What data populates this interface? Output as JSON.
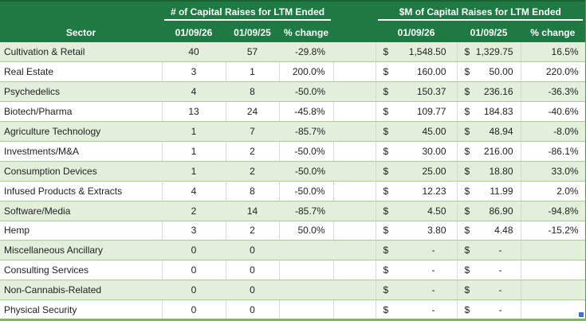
{
  "table": {
    "sector_header": "Sector",
    "left_section": {
      "title": "# of Capital Raises for LTM Ended",
      "col_headers": [
        "01/09/26",
        "01/09/25",
        "% change"
      ]
    },
    "right_section": {
      "title": "$M of Capital Raises for LTM Ended",
      "col_headers": [
        "01/09/26",
        "01/09/25",
        "% change"
      ]
    },
    "currency_symbol": "$",
    "rows": [
      {
        "sector": "Cultivation & Retail",
        "raises_26": "40",
        "raises_25": "57",
        "raises_change": "-29.8%",
        "dollars_26": "1,548.50",
        "dollars_25": "1,329.75",
        "dollars_change": "16.5%"
      },
      {
        "sector": "Real Estate",
        "raises_26": "3",
        "raises_25": "1",
        "raises_change": "200.0%",
        "dollars_26": "160.00",
        "dollars_25": "50.00",
        "dollars_change": "220.0%"
      },
      {
        "sector": "Psychedelics",
        "raises_26": "4",
        "raises_25": "8",
        "raises_change": "-50.0%",
        "dollars_26": "150.37",
        "dollars_25": "236.16",
        "dollars_change": "-36.3%"
      },
      {
        "sector": "Biotech/Pharma",
        "raises_26": "13",
        "raises_25": "24",
        "raises_change": "-45.8%",
        "dollars_26": "109.77",
        "dollars_25": "184.83",
        "dollars_change": "-40.6%"
      },
      {
        "sector": "Agriculture Technology",
        "raises_26": "1",
        "raises_25": "7",
        "raises_change": "-85.7%",
        "dollars_26": "45.00",
        "dollars_25": "48.94",
        "dollars_change": "-8.0%"
      },
      {
        "sector": "Investments/M&A",
        "raises_26": "1",
        "raises_25": "2",
        "raises_change": "-50.0%",
        "dollars_26": "30.00",
        "dollars_25": "216.00",
        "dollars_change": "-86.1%"
      },
      {
        "sector": "Consumption Devices",
        "raises_26": "1",
        "raises_25": "2",
        "raises_change": "-50.0%",
        "dollars_26": "25.00",
        "dollars_25": "18.80",
        "dollars_change": "33.0%"
      },
      {
        "sector": "Infused Products & Extracts",
        "raises_26": "4",
        "raises_25": "8",
        "raises_change": "-50.0%",
        "dollars_26": "12.23",
        "dollars_25": "11.99",
        "dollars_change": "2.0%"
      },
      {
        "sector": "Software/Media",
        "raises_26": "2",
        "raises_25": "14",
        "raises_change": "-85.7%",
        "dollars_26": "4.50",
        "dollars_25": "86.90",
        "dollars_change": "-94.8%"
      },
      {
        "sector": "Hemp",
        "raises_26": "3",
        "raises_25": "2",
        "raises_change": "50.0%",
        "dollars_26": "3.80",
        "dollars_25": "4.48",
        "dollars_change": "-15.2%"
      },
      {
        "sector": "Miscellaneous Ancillary",
        "raises_26": "0",
        "raises_25": "0",
        "raises_change": "",
        "dollars_26": "-",
        "dollars_25": "-",
        "dollars_change": ""
      },
      {
        "sector": "Consulting Services",
        "raises_26": "0",
        "raises_25": "0",
        "raises_change": "",
        "dollars_26": "-",
        "dollars_25": "-",
        "dollars_change": ""
      },
      {
        "sector": "Non-Cannabis-Related",
        "raises_26": "0",
        "raises_25": "0",
        "raises_change": "",
        "dollars_26": "-",
        "dollars_25": "-",
        "dollars_change": ""
      },
      {
        "sector": "Physical Security",
        "raises_26": "0",
        "raises_25": "0",
        "raises_change": "",
        "dollars_26": "-",
        "dollars_25": "-",
        "dollars_change": ""
      }
    ],
    "colors": {
      "header_green": "#1e7a42",
      "band_green": "#e2efda",
      "row_line_green": "#a9ce91",
      "gridline_gray": "#d9d9d9",
      "outer_border_green": "#54994f",
      "fill_handle_blue": "#4472c4"
    }
  }
}
